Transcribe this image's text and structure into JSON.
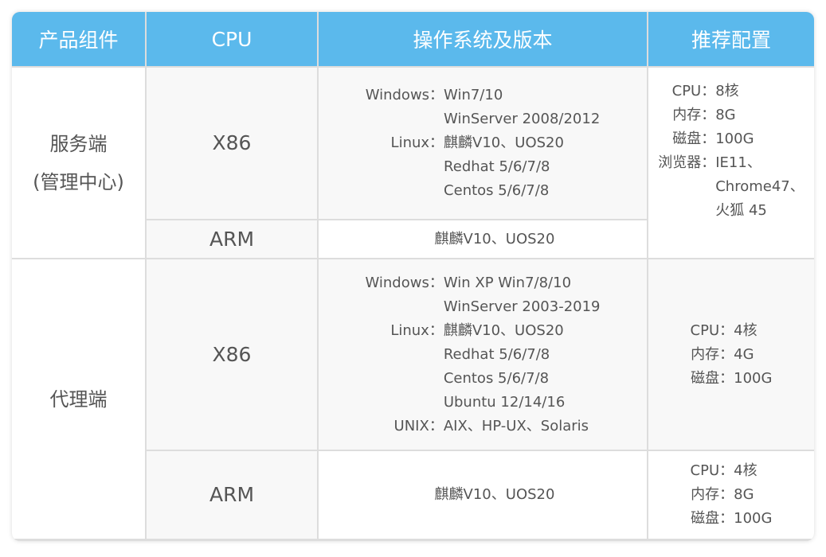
{
  "headers": [
    "产品组件",
    "CPU",
    "操作系统及版本",
    "推荐配置"
  ],
  "server": {
    "name": "服务端",
    "sub": "(管理中心)",
    "x86": {
      "cpu": "X86",
      "os": [
        [
          "Windows：",
          "Win7/10"
        ],
        [
          "",
          "WinServer 2008/2012"
        ],
        [
          "Linux：",
          "麒麟V10、UOS20"
        ],
        [
          "",
          "Redhat 5/6/7/8"
        ],
        [
          "",
          "Centos 5/6/7/8"
        ]
      ]
    },
    "arm": {
      "cpu": "ARM",
      "os": "麒麟V10、UOS20"
    },
    "config": [
      [
        "CPU：",
        "8核"
      ],
      [
        "内存：",
        "8G"
      ],
      [
        "磁盘：",
        "100G"
      ],
      [
        "浏览器：",
        "IE11、"
      ],
      [
        "",
        "Chrome47、"
      ],
      [
        "",
        "火狐 45"
      ]
    ]
  },
  "agent": {
    "name": "代理端",
    "x86": {
      "cpu": "X86",
      "os": [
        [
          "Windows：",
          "Win XP Win7/8/10"
        ],
        [
          "",
          "WinServer 2003-2019"
        ],
        [
          "Linux：",
          "麒麟V10、UOS20"
        ],
        [
          "",
          "Redhat 5/6/7/8"
        ],
        [
          "",
          "Centos 5/6/7/8"
        ],
        [
          "",
          "Ubuntu 12/14/16"
        ],
        [
          "UNIX：",
          "AIX、HP-UX、Solaris"
        ]
      ],
      "config": [
        [
          "CPU：",
          "4核"
        ],
        [
          "内存：",
          "4G"
        ],
        [
          "磁盘：",
          "100G"
        ]
      ]
    },
    "arm": {
      "cpu": "ARM",
      "os": "麒麟V10、UOS20",
      "config": [
        [
          "CPU：",
          "4核"
        ],
        [
          "内存：",
          "8G"
        ],
        [
          "磁盘：",
          "100G"
        ]
      ]
    }
  }
}
